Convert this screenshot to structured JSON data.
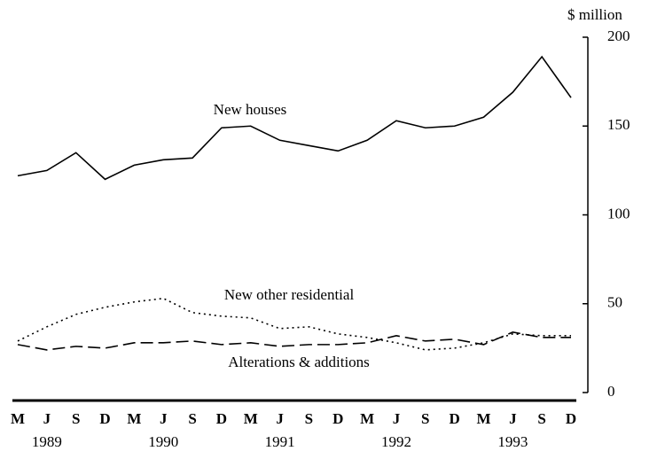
{
  "chart_data": {
    "type": "line",
    "y_unit_label": "$ million",
    "categories": [
      "M",
      "J",
      "S",
      "D",
      "M",
      "J",
      "S",
      "D",
      "M",
      "J",
      "S",
      "D",
      "M",
      "J",
      "S",
      "D",
      "M",
      "J",
      "S",
      "D"
    ],
    "years": [
      "1989",
      "1990",
      "1991",
      "1992",
      "1993"
    ],
    "series": [
      {
        "name": "New houses",
        "color": "#000000",
        "style": "solid",
        "values": [
          122,
          125,
          135,
          120,
          128,
          131,
          132,
          149,
          150,
          142,
          139,
          136,
          142,
          153,
          149,
          150,
          155,
          169,
          189,
          166
        ]
      },
      {
        "name": "New other residential",
        "color": "#000000",
        "style": "dotted",
        "values": [
          29,
          37,
          44,
          48,
          51,
          53,
          45,
          43,
          42,
          36,
          37,
          33,
          31,
          28,
          24,
          25,
          28,
          33,
          32,
          32
        ]
      },
      {
        "name": "Alterations & additions",
        "color": "#000000",
        "style": "dashed",
        "values": [
          27,
          24,
          26,
          25,
          28,
          28,
          29,
          27,
          28,
          26,
          27,
          27,
          28,
          32,
          29,
          30,
          27,
          34,
          31,
          31
        ]
      }
    ],
    "ylim": [
      0,
      200
    ],
    "yticks": [
      0,
      50,
      100,
      150,
      200
    ],
    "y_axis_side": "right"
  }
}
